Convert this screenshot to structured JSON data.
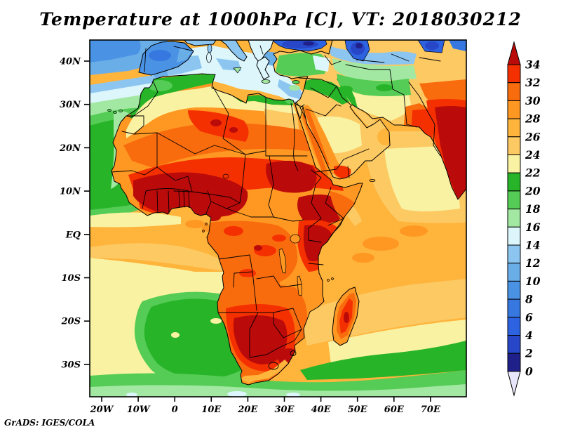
{
  "title": "Temperature at 1000hPa [C], VT: 2018030212",
  "credit": "GrADS: IGES/COLA",
  "axes": {
    "lat_ticks": [
      "40N",
      "30N",
      "20N",
      "10N",
      "EQ",
      "10S",
      "20S",
      "30S"
    ],
    "lon_ticks": [
      "20W",
      "10W",
      "0",
      "10E",
      "20E",
      "30E",
      "40E",
      "50E",
      "60E",
      "70E"
    ]
  },
  "colorbar": {
    "labels": [
      "34",
      "32",
      "30",
      "28",
      "26",
      "24",
      "22",
      "20",
      "18",
      "16",
      "14",
      "12",
      "10",
      "8",
      "6",
      "4",
      "2",
      "0"
    ],
    "levels_top_to_bottom": [
      "t32",
      "t30",
      "t28",
      "t26",
      "t24",
      "t22",
      "t20",
      "t18",
      "t16",
      "t14",
      "t12",
      "t10",
      "t8",
      "t6",
      "t4",
      "t2",
      "t0"
    ],
    "above_max": "t34",
    "below_min": "tneg"
  },
  "palette": {
    "t34": "#bb0a0a",
    "t32": "#f53000",
    "t30": "#f96c0e",
    "t28": "#ff9822",
    "t26": "#ffb43c",
    "t24": "#fcc963",
    "t22": "#f9f2a2",
    "t20": "#28b428",
    "t18": "#55cc55",
    "t16": "#a2e8a2",
    "t14": "#dcf6fc",
    "t12": "#8cc6f0",
    "t10": "#6aaee8",
    "t8": "#4a92e4",
    "t6": "#3678e0",
    "t4": "#2d62e0",
    "t2": "#2746c8",
    "t0": "#20208a",
    "tneg": "#e8e6fa"
  },
  "chart_data": {
    "type": "heatmap",
    "title": "Temperature at 1000hPa [C], VT: 2018030212",
    "variable": "Temperature",
    "level": "1000hPa",
    "units": "C",
    "valid_time": "2018030212",
    "x_tick_labels": [
      "20W",
      "10W",
      "0",
      "10E",
      "20E",
      "30E",
      "40E",
      "50E",
      "60E",
      "70E"
    ],
    "y_tick_labels": [
      "40N",
      "30N",
      "20N",
      "10N",
      "EQ",
      "10S",
      "20S",
      "30S"
    ],
    "contour_interval": 2,
    "colorbar_min": 0,
    "colorbar_max": 34,
    "legend_position": "right",
    "renderer": "GrADS: IGES/COLA"
  }
}
